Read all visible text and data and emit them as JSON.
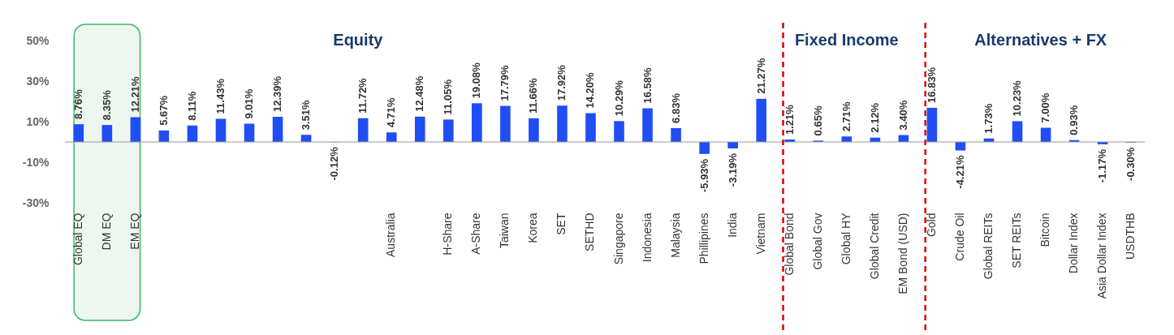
{
  "chart_data": {
    "type": "bar",
    "categories": [
      "Global EQ",
      "DM EQ",
      "EM EQ",
      null,
      null,
      null,
      null,
      null,
      null,
      null,
      null,
      "Australia",
      null,
      "H-Share",
      "A-Share",
      "Taiwan",
      "Korea",
      "SET",
      "SETHD",
      "Singapore",
      "Indonesia",
      "Malaysia",
      "Phillipines",
      "India",
      "Vietnam",
      "Global Bond",
      "Global Gov",
      "Global  HY",
      "Global Credit",
      "EM Bond (USD)",
      "Gold",
      "Crude Oil",
      "Global REITs",
      "SET REITs",
      "Bitcoin",
      "Dollar Index",
      "Asia Dollar Index",
      "USDTHB"
    ],
    "values": [
      8.76,
      8.35,
      12.21,
      5.67,
      8.11,
      11.43,
      9.01,
      12.39,
      3.51,
      -0.12,
      11.72,
      4.71,
      12.48,
      11.05,
      19.08,
      17.79,
      11.66,
      17.92,
      14.2,
      10.29,
      16.58,
      6.83,
      -5.93,
      -3.19,
      21.27,
      1.21,
      0.65,
      2.71,
      2.12,
      3.4,
      16.83,
      -4.21,
      1.73,
      10.23,
      7.0,
      0.93,
      -1.17,
      -0.3
    ],
    "color": "#1f4ef5",
    "value_labels": [
      "8.76%",
      "8.35%",
      "12.21%",
      "5.67%",
      "8.11%",
      "11.43%",
      "9.01%",
      "12.39%",
      "3.51%",
      "-0.12%",
      "11.72%",
      "4.71%",
      "12.48%",
      "11.05%",
      "19.08%",
      "17.79%",
      "11.66%",
      "17.92%",
      "14.20%",
      "10.29%",
      "16.58%",
      "6.83%",
      "-5.93%",
      "-3.19%",
      "21.27%",
      "1.21%",
      "0.65%",
      "2.71%",
      "2.12%",
      "3.40%",
      "16.83%",
      "-4.21%",
      "1.73%",
      "10.23%",
      "7.00%",
      "0.93%",
      "-1.17%",
      "-0.30%"
    ],
    "ylim": [
      -30,
      50
    ],
    "yticks": [
      {
        "value": -30,
        "label": "-30%"
      },
      {
        "value": -10,
        "label": "-10%"
      },
      {
        "value": 10,
        "label": "10%"
      },
      {
        "value": 30,
        "label": "30%"
      },
      {
        "value": 50,
        "label": "50%"
      }
    ],
    "grid": false,
    "annotations": [
      "Equity",
      "Fixed Income",
      "Alternatives + FX"
    ],
    "ref_lines": [
      {
        "axis": "x",
        "value": "Global Bond",
        "color": "#e00000",
        "line_style": "dashed"
      },
      {
        "axis": "x",
        "value": "Gold",
        "color": "#e00000",
        "line_style": "dashed"
      }
    ],
    "bands": [
      {
        "axis": "x",
        "from": "Global EQ",
        "to": "EM EQ",
        "color": "#eef6f0"
      }
    ]
  }
}
